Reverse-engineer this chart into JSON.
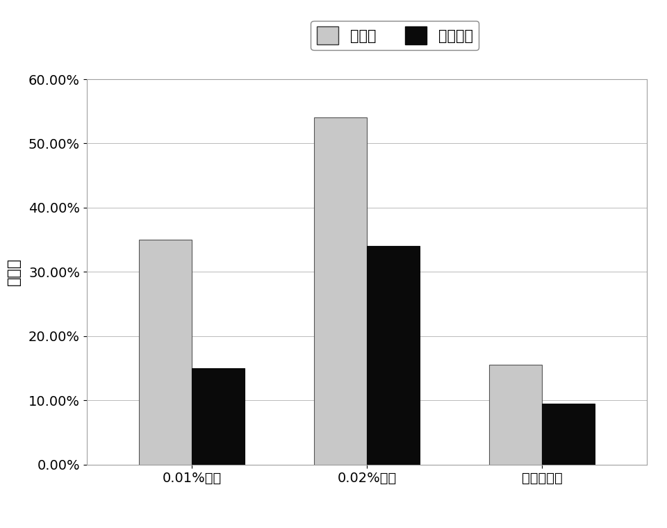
{
  "categories": [
    "0.01%氰胺",
    "0.02%氰胺",
    "未添加氰胺"
  ],
  "series": [
    {
      "name": "纤维素",
      "values": [
        0.35,
        0.54,
        0.155
      ],
      "color": "#c8c8c8",
      "edgecolor": "#555555"
    },
    {
      "name": "半纤维素",
      "values": [
        0.15,
        0.34,
        0.095
      ],
      "color": "#0a0a0a",
      "edgecolor": "#0a0a0a"
    }
  ],
  "ylabel": "转化率",
  "ylim": [
    0,
    0.6
  ],
  "yticks": [
    0.0,
    0.1,
    0.2,
    0.3,
    0.4,
    0.5,
    0.6
  ],
  "ytick_labels": [
    "0.00%",
    "10.00%",
    "20.00%",
    "30.00%",
    "40.00%",
    "50.00%",
    "60.00%"
  ],
  "bar_width": 0.3,
  "background_color": "#ffffff",
  "plot_bg_color": "#ffffff",
  "grid_color": "#b0b0b0",
  "label_fontsize": 16,
  "tick_fontsize": 14,
  "legend_fontsize": 15
}
